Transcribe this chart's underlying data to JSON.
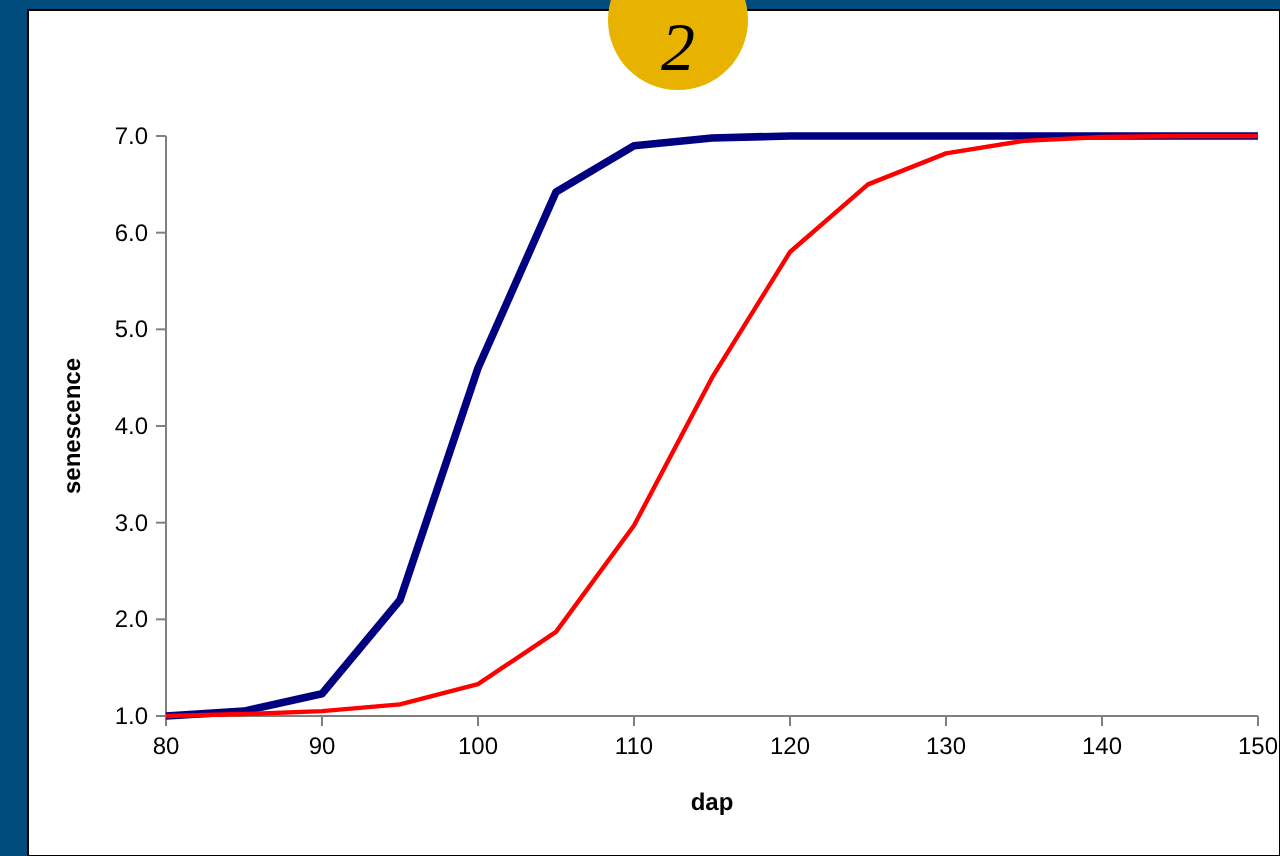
{
  "chart_data": {
    "type": "line",
    "xlabel": "dap",
    "ylabel": "senescence",
    "x": [
      80,
      85,
      90,
      95,
      100,
      105,
      110,
      115,
      120,
      125,
      130,
      135,
      140,
      145,
      150
    ],
    "series": [
      {
        "color": "#000080",
        "values": [
          1.0,
          1.05,
          1.23,
          2.2,
          4.6,
          6.42,
          6.9,
          6.98,
          7.0,
          7.0,
          7.0,
          7.0,
          7.0,
          7.0,
          7.0
        ]
      },
      {
        "color": "#ff0000",
        "values": [
          1.0,
          1.02,
          1.05,
          1.12,
          1.33,
          1.87,
          2.97,
          4.5,
          5.8,
          6.5,
          6.82,
          6.95,
          6.99,
          7.0,
          7.0
        ]
      }
    ],
    "xlim": [
      80,
      150
    ],
    "xticks": [
      80,
      90,
      100,
      110,
      120,
      130,
      140,
      150
    ],
    "ylim": [
      1,
      7
    ],
    "yticks": [
      {
        "value": 1,
        "label": "1.0"
      },
      {
        "value": 2,
        "label": "2.0"
      },
      {
        "value": 3,
        "label": "3.0"
      },
      {
        "value": 4,
        "label": "4.0"
      },
      {
        "value": 5,
        "label": "5.0"
      },
      {
        "value": 6,
        "label": "6.0"
      },
      {
        "value": 7,
        "label": "7.0"
      }
    ],
    "annotations": [
      "2"
    ]
  }
}
